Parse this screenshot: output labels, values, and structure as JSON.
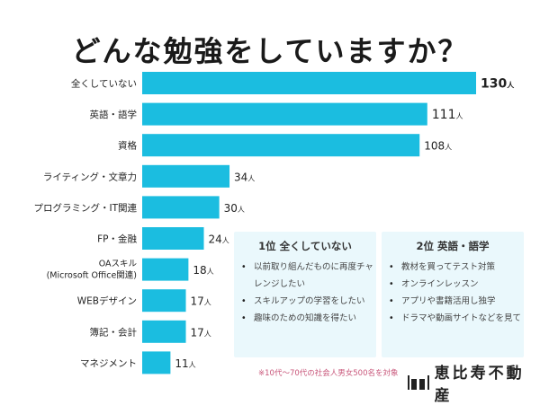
{
  "chart_data": {
    "type": "bar",
    "orientation": "horizontal",
    "title": "どんな勉強をしていますか？",
    "unit": "人",
    "categories": [
      "全くしていない",
      "英語・語学",
      "資格",
      "ライティング・文章力",
      "プログラミング・IT関連",
      "FP・金融",
      "OAスキル\n(Microsoft Office関連)",
      "WEBデザイン",
      "簿記・会計",
      "マネジメント"
    ],
    "values": [
      130,
      111,
      108,
      34,
      30,
      24,
      18,
      17,
      17,
      11
    ],
    "xlim": [
      0,
      130
    ],
    "grid": false,
    "bar_color": "#1bbde0"
  },
  "cards": [
    {
      "title": "1位 全くしていない",
      "items": [
        "以前取り組んだものに再度チャレンジしたい",
        "スキルアップの学習をしたい",
        "趣味のための知識を得たい"
      ]
    },
    {
      "title": "2位 英語・語学",
      "items": [
        "教材を買ってテスト対策",
        "オンラインレッスン",
        "アプリや書籍活用し独学",
        "ドラマや動画サイトなどを見て"
      ]
    }
  ],
  "note": "※10代〜70代の社会人男女500名を対象",
  "logo": "恵比寿不動産"
}
